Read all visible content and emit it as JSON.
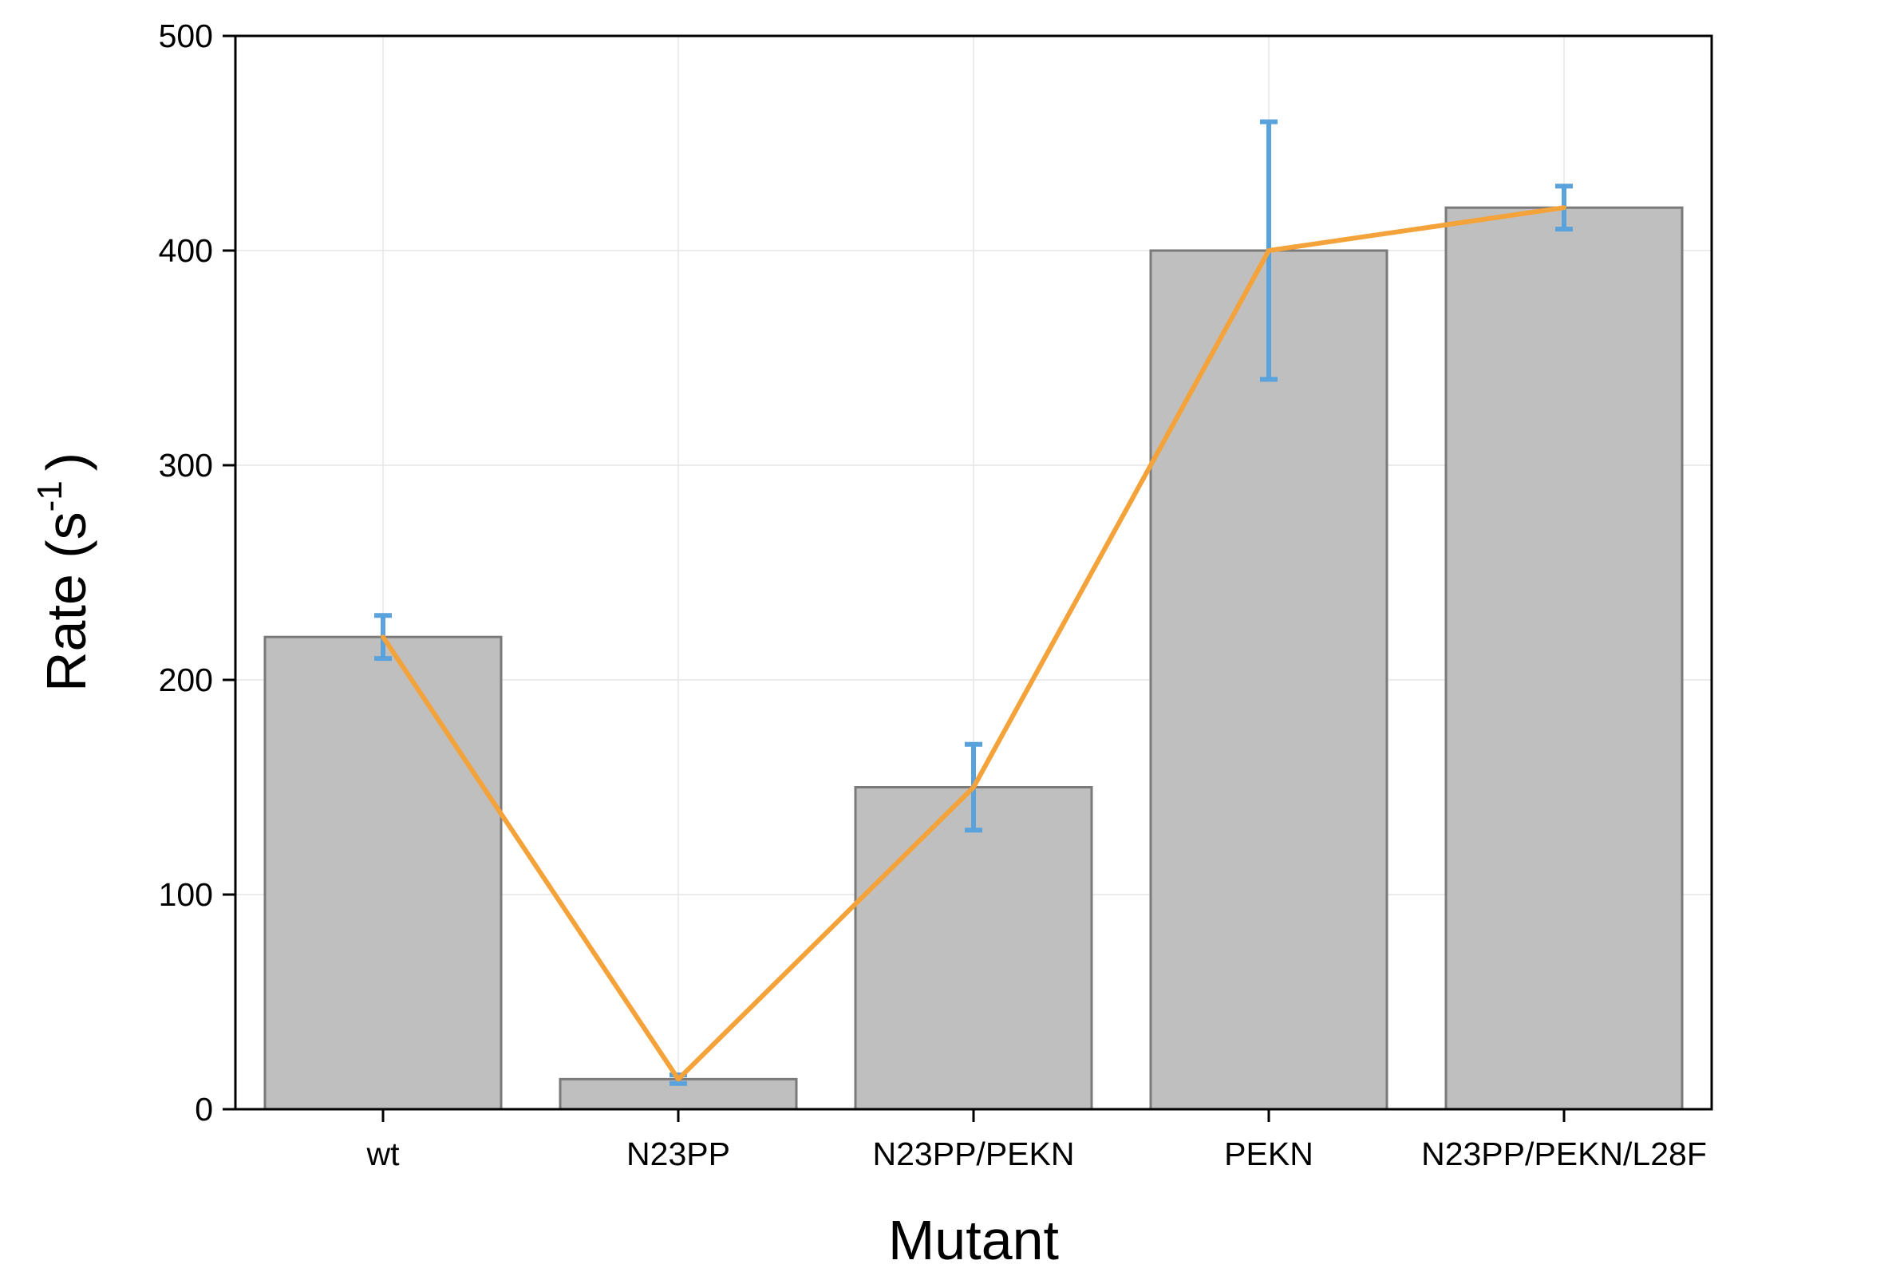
{
  "chart_data": {
    "type": "bar",
    "categories": [
      "wt",
      "N23PP",
      "N23PP/PEKN",
      "PEKN",
      "N23PP/PEKN/L28F"
    ],
    "values": [
      220,
      14,
      150,
      400,
      420
    ],
    "error_bars": {
      "lower": [
        210,
        12,
        130,
        340,
        410
      ],
      "upper": [
        230,
        16,
        170,
        460,
        430
      ]
    },
    "line_values": [
      220,
      14,
      150,
      400,
      420
    ],
    "xlabel": "Mutant",
    "ylabel": {
      "main": "Rate (s",
      "superscript": "-1",
      "close": ")"
    },
    "ylim": [
      0,
      500
    ],
    "yticks": [
      "0",
      "100",
      "200",
      "300",
      "400",
      "500"
    ],
    "grid": true,
    "legend": "none",
    "colors": {
      "bar_fill": "#bfbfbf",
      "bar_stroke": "#7a7a7a",
      "line": "#f4a23a",
      "error_bar": "#5aa2dc",
      "grid": "#e6e6e6",
      "axis": "#000000"
    }
  }
}
